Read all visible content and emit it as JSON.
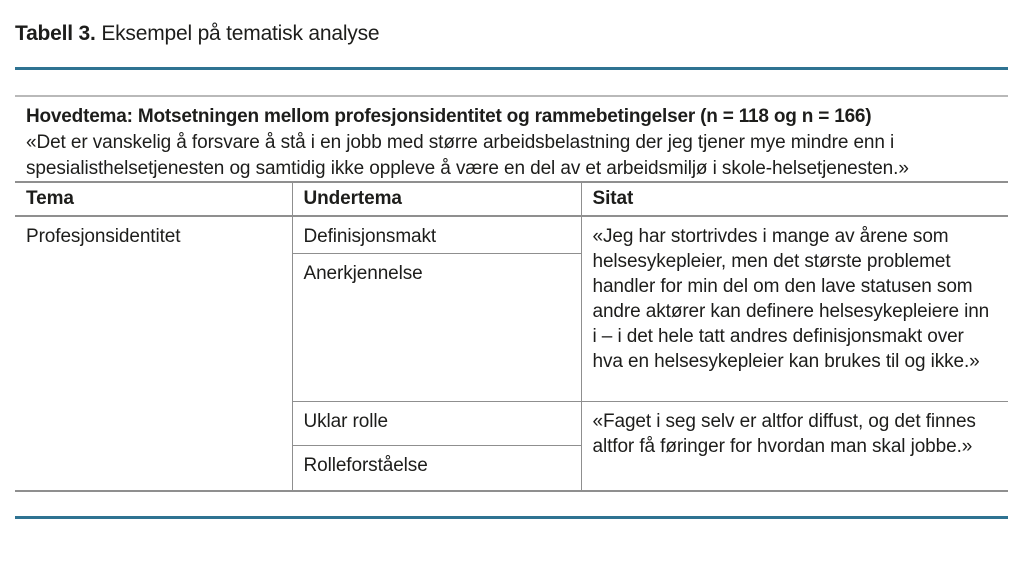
{
  "title": {
    "label": "Tabell 3.",
    "text": "Eksempel på tematisk analyse"
  },
  "main_theme": {
    "heading": "Hovedtema: Motsetningen mellom profesjonsidentitet og rammebetingelser (n = 118 og n = 166)",
    "quote": "«Det er vanskelig å forsvare å stå i en jobb med større arbeidsbelastning der jeg tjener mye mindre enn i spesialisthelsetjenesten og samtidig ikke oppleve å være en del av et arbeidsmiljø i skole-helsetjenesten.»"
  },
  "table": {
    "headers": {
      "tema": "Tema",
      "undertema": "Undertema",
      "sitat": "Sitat"
    },
    "tema": "Profesjonsidentitet",
    "undertemaer": [
      "Definisjonsmakt",
      "Anerkjennelse",
      "Uklar rolle",
      "Rolleforståelse"
    ],
    "sitater": [
      "«Jeg har stortrivdes i mange av årene som helsesykepleier, men det største problemet handler for min del om den lave statusen som andre aktører kan definere helsesykepleiere inn i – i det hele tatt andres definisjonsmakt over hva en helsesykepleier kan brukes til og ikke.»",
      "«Faget i seg selv er altfor diffust, og det finnes altfor få føringer for hvordan man skal jobbe.»"
    ]
  },
  "colors": {
    "accent_rule": "#2f7392",
    "table_border": "#8f8f8f",
    "light_rule": "#b9b9b9",
    "text": "#1d1d1b"
  }
}
